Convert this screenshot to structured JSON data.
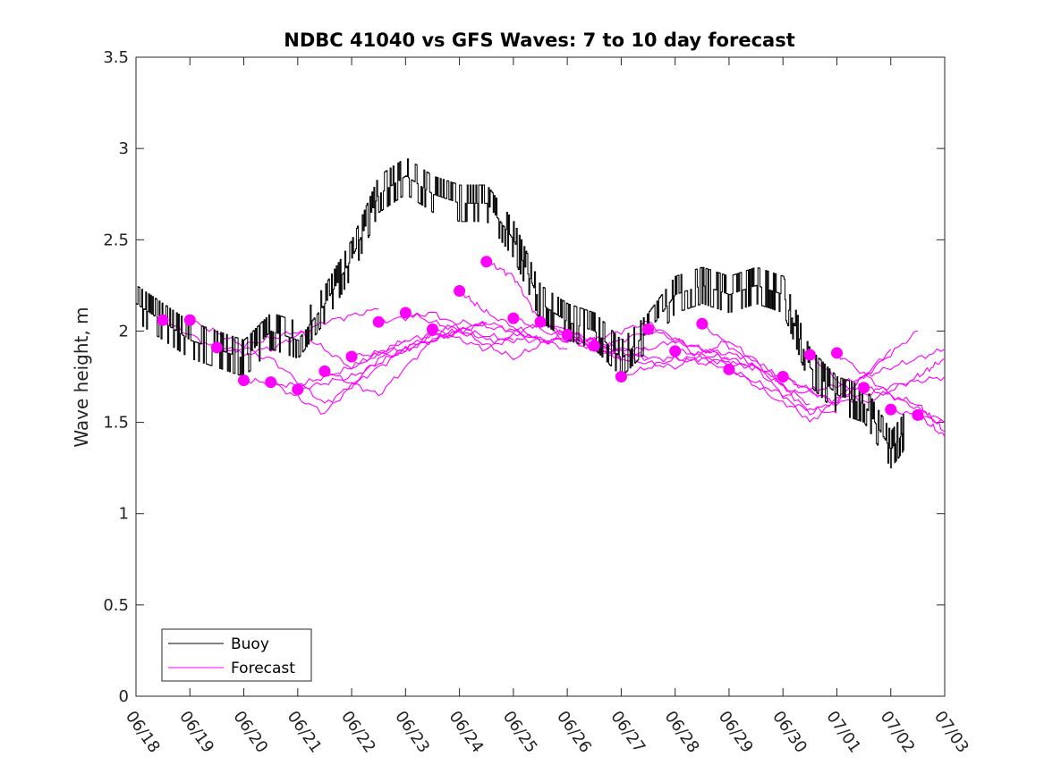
{
  "chart_data": {
    "type": "line",
    "title": "NDBC 41040 vs GFS Waves: 7 to 10 day forecast",
    "xlabel": "",
    "ylabel": "Wave height, m",
    "xlim": [
      "06/18",
      "07/03"
    ],
    "ylim": [
      0,
      3.5
    ],
    "x_tick_labels": [
      "06/18",
      "06/19",
      "06/20",
      "06/21",
      "06/22",
      "06/23",
      "06/24",
      "06/25",
      "06/26",
      "06/27",
      "06/28",
      "06/29",
      "06/30",
      "07/01",
      "07/02",
      "07/03"
    ],
    "y_tick_labels": [
      "0",
      "0.5",
      "1",
      "1.5",
      "2",
      "2.5",
      "3",
      "3.5"
    ],
    "grid": false,
    "legend_placement": "bottom-left",
    "series": [
      {
        "name": "Buoy",
        "color": "#000000",
        "x": [
          "06/18",
          "06/18 12:00",
          "06/19",
          "06/19 12:00",
          "06/20",
          "06/20 12:00",
          "06/21",
          "06/21 12:00",
          "06/22",
          "06/22 12:00",
          "06/23",
          "06/23 12:00",
          "06/24",
          "06/24 12:00",
          "06/25",
          "06/25 12:00",
          "06/26",
          "06/26 12:00",
          "06/27",
          "06/27 12:00",
          "06/28",
          "06/28 12:00",
          "06/29",
          "06/29 12:00",
          "06/30",
          "06/30 12:00",
          "07/01",
          "07/01 12:00",
          "07/02",
          "07/02 06:00"
        ],
        "values": [
          2.15,
          2.05,
          1.95,
          1.9,
          1.85,
          2.0,
          1.95,
          2.15,
          2.4,
          2.75,
          2.85,
          2.75,
          2.7,
          2.7,
          2.5,
          2.15,
          2.05,
          2.0,
          1.85,
          2.0,
          2.2,
          2.25,
          2.2,
          2.25,
          2.2,
          1.8,
          1.65,
          1.6,
          1.35,
          1.45
        ]
      },
      {
        "name": "Forecast",
        "color": "#ff00ff",
        "runs": [
          {
            "x": [
              "06/18 12:00",
              "06/19 12:00",
              "06/20 12:00",
              "06/21 12:00",
              "06/22 12:00"
            ],
            "values": [
              2.06,
              1.9,
              1.9,
              2.05,
              2.12
            ]
          },
          {
            "x": [
              "06/19",
              "06/20",
              "06/21",
              "06/22",
              "06/23"
            ],
            "values": [
              2.06,
              1.92,
              2.0,
              1.8,
              1.95
            ]
          },
          {
            "x": [
              "06/19 12:00",
              "06/20 12:00",
              "06/21 12:00",
              "06/22 12:00",
              "06/23 12:00"
            ],
            "values": [
              1.91,
              1.85,
              1.6,
              1.8,
              2.0
            ]
          },
          {
            "x": [
              "06/20",
              "06/21",
              "06/22",
              "06/23",
              "06/24"
            ],
            "values": [
              1.73,
              1.7,
              1.8,
              1.95,
              2.0
            ]
          },
          {
            "x": [
              "06/20 12:00",
              "06/21 12:00",
              "06/22 12:00",
              "06/23 12:00",
              "06/24 12:00"
            ],
            "values": [
              1.72,
              1.55,
              1.85,
              1.95,
              2.05
            ]
          },
          {
            "x": [
              "06/21",
              "06/22",
              "06/23",
              "06/24",
              "06/25"
            ],
            "values": [
              1.68,
              1.75,
              1.9,
              2.0,
              1.95
            ]
          },
          {
            "x": [
              "06/21 12:00",
              "06/22 12:00",
              "06/23 12:00",
              "06/24 12:00",
              "06/25 12:00"
            ],
            "values": [
              1.78,
              1.65,
              1.95,
              2.05,
              1.95
            ]
          },
          {
            "x": [
              "06/22",
              "06/23",
              "06/24",
              "06/25",
              "06/26"
            ],
            "values": [
              1.86,
              1.9,
              2.05,
              2.0,
              1.9
            ]
          },
          {
            "x": [
              "06/22 12:00",
              "06/23 12:00",
              "06/24 12:00",
              "06/25 12:00",
              "06/26 12:00"
            ],
            "values": [
              2.05,
              2.1,
              1.95,
              1.95,
              1.95
            ]
          },
          {
            "x": [
              "06/23",
              "06/24",
              "06/25",
              "06/26",
              "06/27"
            ],
            "values": [
              2.1,
              2.0,
              1.85,
              2.0,
              1.85
            ]
          },
          {
            "x": [
              "06/23 12:00",
              "06/24 12:00",
              "06/25 12:00",
              "06/26 12:00",
              "06/27 12:00"
            ],
            "values": [
              2.01,
              1.9,
              2.05,
              1.9,
              2.0
            ]
          },
          {
            "x": [
              "06/24",
              "06/24 12:00",
              "06/25 12:00",
              "06/26 12:00",
              "06/27 12:00"
            ],
            "values": [
              2.22,
              2.1,
              1.95,
              1.95,
              1.85
            ]
          },
          {
            "x": [
              "06/24 12:00",
              "06/25",
              "06/25 12:00",
              "06/26 12:00",
              "06/27 12:00"
            ],
            "values": [
              2.38,
              2.3,
              2.05,
              1.9,
              1.9
            ]
          },
          {
            "x": [
              "06/25",
              "06/26",
              "06/27",
              "06/28",
              "06/29"
            ],
            "values": [
              2.07,
              1.95,
              1.85,
              1.95,
              1.85
            ]
          },
          {
            "x": [
              "06/25 12:00",
              "06/26 12:00",
              "06/27 12:00",
              "06/28 12:00",
              "06/29 12:00"
            ],
            "values": [
              2.05,
              1.95,
              2.05,
              1.85,
              1.8
            ]
          },
          {
            "x": [
              "06/26",
              "06/27",
              "06/28",
              "06/29",
              "06/30"
            ],
            "values": [
              1.98,
              1.85,
              1.8,
              1.95,
              1.7
            ]
          },
          {
            "x": [
              "06/26 12:00",
              "06/27 12:00",
              "06/28 12:00",
              "06/29 12:00",
              "06/30 12:00"
            ],
            "values": [
              1.92,
              1.85,
              1.85,
              1.8,
              1.6
            ]
          },
          {
            "x": [
              "06/27",
              "06/28",
              "06/29",
              "06/30",
              "07/01"
            ],
            "values": [
              1.75,
              1.85,
              1.8,
              1.6,
              1.55
            ]
          },
          {
            "x": [
              "06/27 12:00",
              "06/28 12:00",
              "06/29 12:00",
              "06/30 12:00",
              "07/01 12:00"
            ],
            "values": [
              2.01,
              1.9,
              1.85,
              1.55,
              1.7
            ]
          },
          {
            "x": [
              "06/28",
              "06/29",
              "06/30",
              "07/01",
              "07/02"
            ],
            "values": [
              1.89,
              1.85,
              1.75,
              1.6,
              1.9
            ]
          },
          {
            "x": [
              "06/28 12:00",
              "06/29 12:00",
              "06/30 12:00",
              "07/01 12:00",
              "07/02 12:00"
            ],
            "values": [
              2.04,
              1.8,
              1.5,
              1.75,
              2.0
            ]
          },
          {
            "x": [
              "06/29",
              "06/30",
              "07/01",
              "07/02",
              "07/03"
            ],
            "values": [
              1.79,
              1.65,
              1.7,
              1.8,
              1.9
            ]
          },
          {
            "x": [
              "06/30",
              "07/01",
              "07/02",
              "07/03"
            ],
            "values": [
              1.75,
              1.6,
              1.7,
              1.75
            ]
          },
          {
            "x": [
              "06/30 12:00",
              "07/01 12:00",
              "07/02 12:00",
              "07/03"
            ],
            "values": [
              1.87,
              1.6,
              1.75,
              1.85
            ]
          },
          {
            "x": [
              "07/01",
              "07/02",
              "07/03"
            ],
            "values": [
              1.88,
              1.65,
              1.5
            ]
          },
          {
            "x": [
              "07/01 12:00",
              "07/02 12:00",
              "07/03"
            ],
            "values": [
              1.69,
              1.6,
              1.45
            ]
          },
          {
            "x": [
              "07/02",
              "07/03"
            ],
            "values": [
              1.57,
              1.5
            ]
          },
          {
            "x": [
              "07/02 12:00",
              "07/03"
            ],
            "values": [
              1.54,
              1.42
            ]
          }
        ]
      }
    ]
  }
}
